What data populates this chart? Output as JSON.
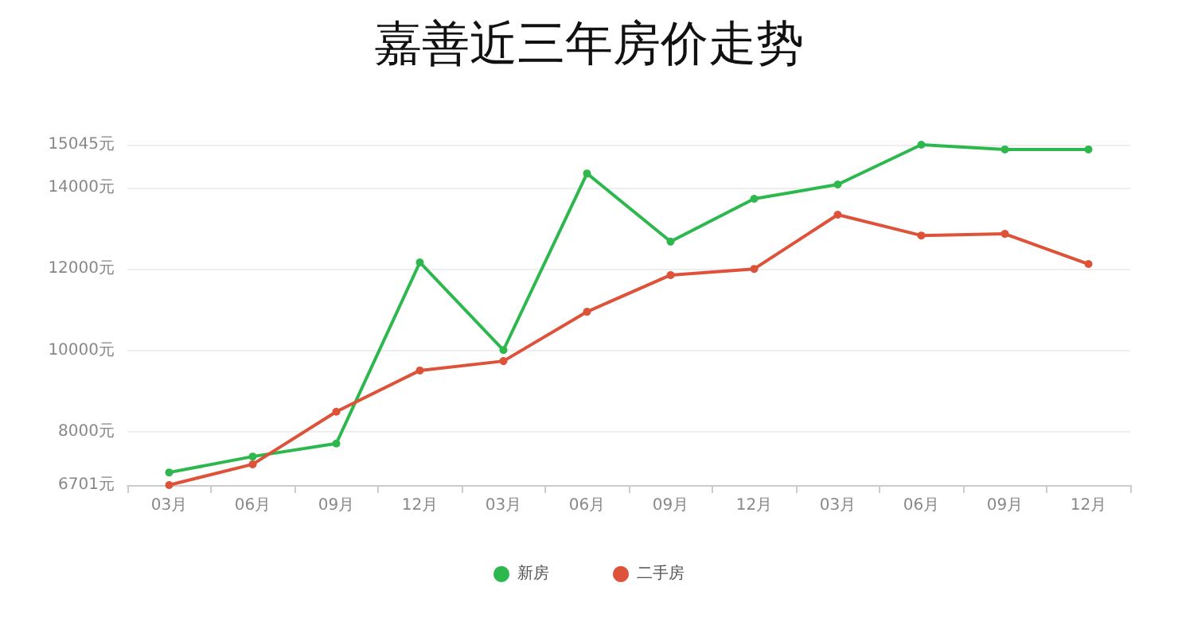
{
  "chart_data": {
    "type": "line",
    "title": "嘉善近三年房价走势",
    "categories": [
      "03月",
      "06月",
      "09月",
      "12月",
      "03月",
      "06月",
      "09月",
      "12月",
      "03月",
      "06月",
      "09月",
      "12月"
    ],
    "series": [
      {
        "name": "新房",
        "color": "#2db84d",
        "values": [
          7010,
          7400,
          7720,
          12160,
          10010,
          14340,
          12670,
          13720,
          14070,
          15045,
          14930,
          14930
        ]
      },
      {
        "name": "二手房",
        "color": "#dd5238",
        "values": [
          6701,
          7210,
          8500,
          9510,
          9740,
          10950,
          11850,
          12000,
          13330,
          12820,
          12860,
          12120
        ]
      }
    ],
    "ylim": [
      6701,
      15045
    ],
    "yticks": [
      {
        "value": 6701,
        "label": "6701元"
      },
      {
        "value": 8000,
        "label": "8000元"
      },
      {
        "value": 10000,
        "label": "10000元"
      },
      {
        "value": 12000,
        "label": "12000元"
      },
      {
        "value": 14000,
        "label": "14000元"
      },
      {
        "value": 15045,
        "label": "15045元"
      }
    ],
    "grid": "y",
    "legend": "bottom",
    "marker": "circle",
    "line_style": "solid"
  }
}
